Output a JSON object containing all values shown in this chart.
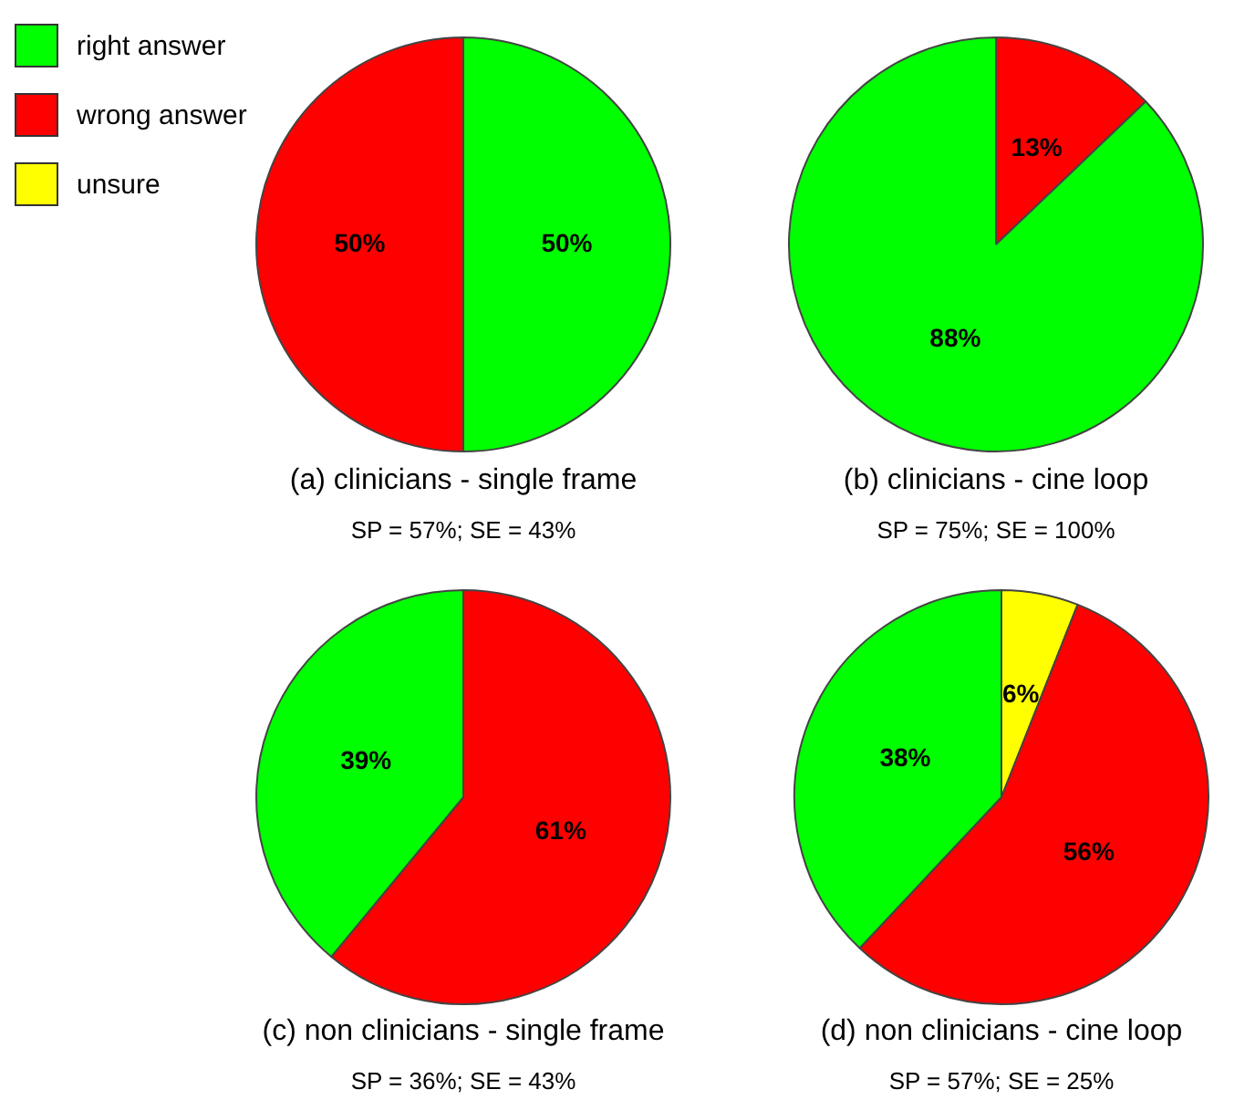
{
  "chart_data": [
    {
      "type": "pie",
      "title": "(a) clinicians - single frame",
      "subtitle": "SP = 57%; SE = 43%",
      "categories": [
        "right answer",
        "wrong answer",
        "unsure"
      ],
      "values": [
        50,
        50,
        0
      ],
      "colors": [
        "#00ff00",
        "#ff0000",
        "#ffff00"
      ],
      "value_labels": [
        "50%",
        "50%",
        null
      ],
      "legend": "top left"
    },
    {
      "type": "pie",
      "title": "(b) clinicians - cine loop",
      "subtitle": "SP = 75%; SE = 100%",
      "categories": [
        null,
        null
      ],
      "values": [
        13,
        88
      ],
      "colors": [
        "#ff0000",
        "#00ff00"
      ],
      "value_labels": [
        "13%",
        "88%"
      ]
    },
    {
      "type": "pie",
      "title": "(c) non clinicians - single frame",
      "subtitle": "SP = 36%; SE = 43%",
      "categories": [
        null,
        null
      ],
      "values": [
        61,
        39
      ],
      "colors": [
        "#ff0000",
        "#00ff00"
      ],
      "value_labels": [
        "61%",
        "39%"
      ]
    },
    {
      "type": "pie",
      "title": "(d) non clinicians - cine loop",
      "subtitle": "SP = 57%; SE = 25%",
      "categories": [
        null,
        null,
        null
      ],
      "values": [
        6,
        56,
        38
      ],
      "colors": [
        "#ffff00",
        "#ff0000",
        "#00ff00"
      ],
      "value_labels": [
        "6%",
        "56%",
        "38%"
      ]
    }
  ]
}
